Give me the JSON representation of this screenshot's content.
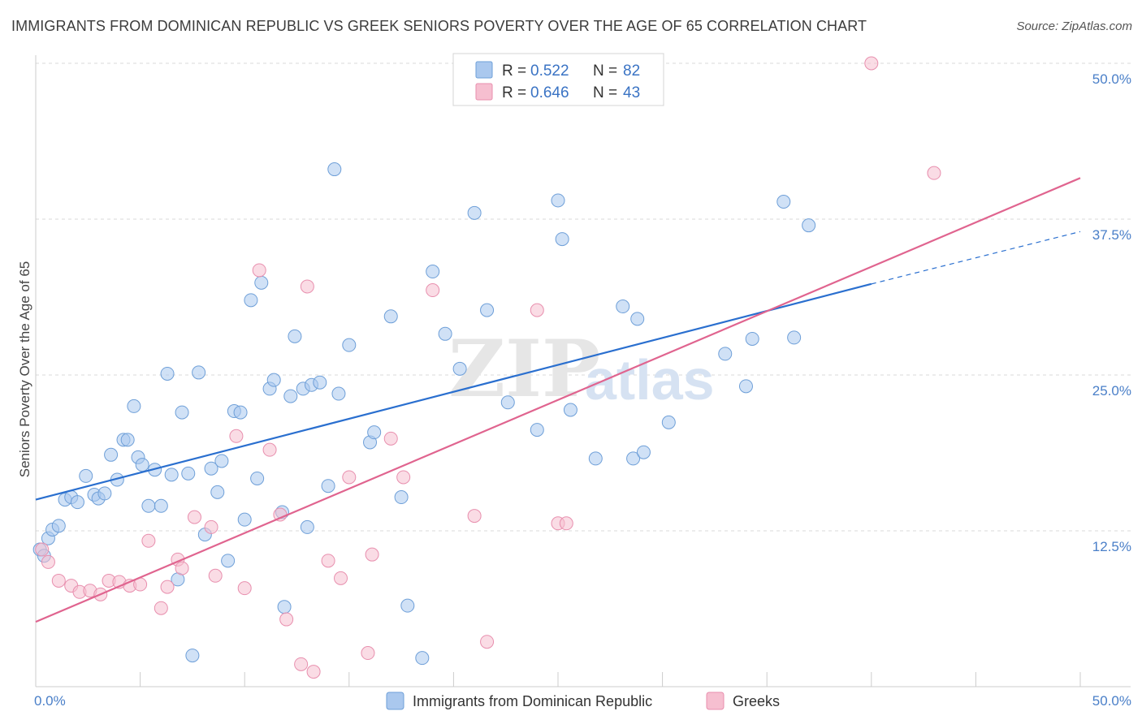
{
  "title": "IMMIGRANTS FROM DOMINICAN REPUBLIC VS GREEK SENIORS POVERTY OVER THE AGE OF 65 CORRELATION CHART",
  "source": "Source: ZipAtlas.com",
  "watermark": {
    "zip": "ZIP",
    "atlas": "atlas"
  },
  "colors": {
    "blue_fill": "#aac8ee",
    "blue_stroke": "#6e9fd8",
    "blue_line": "#2a6fcf",
    "pink_fill": "#f6bfd0",
    "pink_stroke": "#e88fae",
    "pink_line": "#e0648f",
    "grid": "#d9d9d9",
    "tick_label": "#4a7fc8"
  },
  "legend": {
    "rows": [
      {
        "r_label": "R =",
        "r_value": "0.522",
        "n_label": "N =",
        "n_value": "82"
      },
      {
        "r_label": "R =",
        "r_value": "0.646",
        "n_label": "N =",
        "n_value": "43"
      }
    ]
  },
  "chart_data": {
    "type": "scatter",
    "ylabel": "Seniors Poverty Over the Age of 65",
    "xlim": [
      0,
      50
    ],
    "ylim": [
      0,
      50
    ],
    "x_tick_labels": [
      {
        "value": 0,
        "label": "0.0%"
      },
      {
        "value": 50,
        "label": "50.0%"
      }
    ],
    "y_tick_labels": [
      {
        "value": 12.5,
        "label": "12.5%"
      },
      {
        "value": 25,
        "label": "25.0%"
      },
      {
        "value": 37.5,
        "label": "37.5%"
      },
      {
        "value": 50,
        "label": "50.0%"
      }
    ],
    "y_gridlines": [
      12.5,
      25,
      37.5,
      50
    ],
    "legend_position": "top-center",
    "series": [
      {
        "name": "Immigrants from Dominican Republic",
        "color": "blue",
        "trend": {
          "x0": 0,
          "y0": 15.0,
          "x1": 40,
          "y1": 32.3,
          "dash_x1": 50,
          "dash_y1": 36.5
        },
        "points": [
          [
            0.2,
            11.0
          ],
          [
            0.4,
            10.5
          ],
          [
            0.6,
            11.9
          ],
          [
            0.8,
            12.6
          ],
          [
            1.1,
            12.9
          ],
          [
            1.4,
            15.0
          ],
          [
            1.7,
            15.2
          ],
          [
            2.0,
            14.8
          ],
          [
            2.4,
            16.9
          ],
          [
            2.8,
            15.4
          ],
          [
            3.0,
            15.1
          ],
          [
            3.3,
            15.5
          ],
          [
            3.6,
            18.6
          ],
          [
            3.9,
            16.6
          ],
          [
            4.2,
            19.8
          ],
          [
            4.4,
            19.8
          ],
          [
            4.7,
            22.5
          ],
          [
            4.9,
            18.4
          ],
          [
            5.1,
            17.8
          ],
          [
            5.4,
            14.5
          ],
          [
            5.7,
            17.4
          ],
          [
            6.0,
            14.5
          ],
          [
            6.3,
            25.1
          ],
          [
            6.5,
            17.0
          ],
          [
            6.8,
            8.6
          ],
          [
            7.0,
            22.0
          ],
          [
            7.3,
            17.1
          ],
          [
            7.5,
            2.5
          ],
          [
            7.8,
            25.2
          ],
          [
            8.1,
            12.2
          ],
          [
            8.4,
            17.5
          ],
          [
            8.7,
            15.6
          ],
          [
            8.9,
            18.1
          ],
          [
            9.2,
            10.1
          ],
          [
            9.5,
            22.1
          ],
          [
            9.8,
            22.0
          ],
          [
            10.0,
            13.4
          ],
          [
            10.3,
            31.0
          ],
          [
            10.6,
            16.7
          ],
          [
            10.8,
            32.4
          ],
          [
            11.2,
            23.9
          ],
          [
            11.4,
            24.6
          ],
          [
            11.8,
            14.0
          ],
          [
            11.9,
            6.4
          ],
          [
            12.2,
            23.3
          ],
          [
            12.4,
            28.1
          ],
          [
            12.8,
            23.9
          ],
          [
            13.0,
            12.8
          ],
          [
            13.2,
            24.2
          ],
          [
            13.6,
            24.4
          ],
          [
            14.0,
            16.1
          ],
          [
            14.3,
            41.5
          ],
          [
            14.5,
            23.5
          ],
          [
            15.0,
            27.4
          ],
          [
            16.0,
            19.6
          ],
          [
            16.2,
            20.4
          ],
          [
            17.0,
            29.7
          ],
          [
            17.5,
            15.2
          ],
          [
            17.8,
            6.5
          ],
          [
            18.5,
            2.3
          ],
          [
            19.0,
            33.3
          ],
          [
            19.6,
            28.3
          ],
          [
            20.3,
            25.5
          ],
          [
            21.0,
            38.0
          ],
          [
            21.6,
            30.2
          ],
          [
            22.6,
            22.8
          ],
          [
            24.0,
            20.6
          ],
          [
            25.0,
            39.0
          ],
          [
            25.2,
            35.9
          ],
          [
            25.6,
            22.2
          ],
          [
            26.8,
            18.3
          ],
          [
            28.1,
            30.5
          ],
          [
            28.6,
            18.3
          ],
          [
            28.8,
            29.5
          ],
          [
            29.1,
            18.8
          ],
          [
            30.3,
            21.2
          ],
          [
            33.0,
            26.7
          ],
          [
            34.0,
            24.1
          ],
          [
            34.3,
            27.9
          ],
          [
            35.8,
            38.9
          ],
          [
            36.3,
            28.0
          ],
          [
            37.0,
            37.0
          ]
        ]
      },
      {
        "name": "Greeks",
        "color": "pink",
        "trend": {
          "x0": 0,
          "y0": 5.2,
          "x1": 50,
          "y1": 40.8
        },
        "points": [
          [
            0.3,
            11.0
          ],
          [
            0.6,
            10.0
          ],
          [
            1.1,
            8.5
          ],
          [
            1.7,
            8.1
          ],
          [
            2.1,
            7.6
          ],
          [
            2.6,
            7.7
          ],
          [
            3.1,
            7.4
          ],
          [
            3.5,
            8.5
          ],
          [
            4.0,
            8.4
          ],
          [
            4.5,
            8.1
          ],
          [
            5.0,
            8.2
          ],
          [
            5.4,
            11.7
          ],
          [
            6.0,
            6.3
          ],
          [
            6.3,
            8.0
          ],
          [
            6.8,
            10.2
          ],
          [
            7.0,
            9.5
          ],
          [
            7.6,
            13.6
          ],
          [
            8.4,
            12.8
          ],
          [
            8.6,
            8.9
          ],
          [
            9.6,
            20.1
          ],
          [
            10.0,
            7.9
          ],
          [
            10.7,
            33.4
          ],
          [
            11.2,
            19.0
          ],
          [
            11.7,
            13.8
          ],
          [
            12.0,
            5.4
          ],
          [
            12.7,
            1.8
          ],
          [
            13.0,
            32.1
          ],
          [
            13.3,
            1.2
          ],
          [
            14.0,
            10.1
          ],
          [
            14.6,
            8.7
          ],
          [
            15.0,
            16.8
          ],
          [
            15.9,
            2.7
          ],
          [
            16.1,
            10.6
          ],
          [
            17.0,
            19.9
          ],
          [
            17.6,
            16.8
          ],
          [
            19.0,
            31.8
          ],
          [
            21.0,
            13.7
          ],
          [
            21.6,
            3.6
          ],
          [
            24.0,
            30.2
          ],
          [
            25.0,
            13.1
          ],
          [
            25.4,
            13.1
          ],
          [
            40.0,
            50.0
          ],
          [
            43.0,
            41.2
          ]
        ]
      }
    ]
  },
  "bottom_legend": [
    {
      "label": "Immigrants from Dominican Republic"
    },
    {
      "label": "Greeks"
    }
  ]
}
